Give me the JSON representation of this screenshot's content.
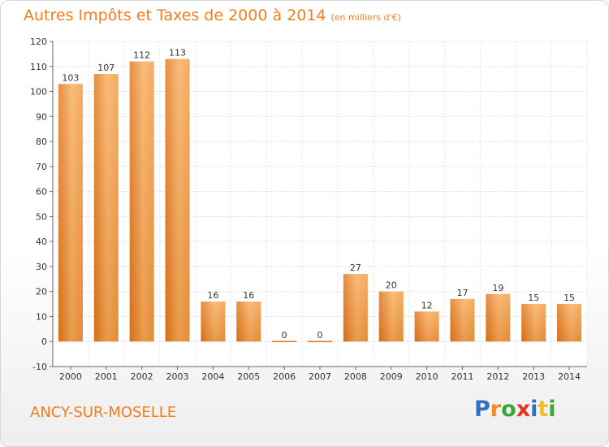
{
  "chart_data": {
    "type": "bar",
    "title": "Autres Impôts et Taxes de 2000 à 2014",
    "subtitle": "(en milliers d'€)",
    "categories": [
      "2000",
      "2001",
      "2002",
      "2003",
      "2004",
      "2005",
      "2006",
      "2007",
      "2008",
      "2009",
      "2010",
      "2011",
      "2012",
      "2013",
      "2014"
    ],
    "values": [
      103,
      107,
      112,
      113,
      16,
      16,
      0,
      0,
      27,
      20,
      12,
      17,
      19,
      15,
      15
    ],
    "data_labels": [
      "103",
      "107",
      "112",
      "113",
      "16",
      "16",
      "0",
      "0",
      "27",
      "20",
      "12",
      "17",
      "19",
      "15",
      "15"
    ],
    "ylim": [
      -10,
      120
    ],
    "yticks": [
      -10,
      0,
      10,
      20,
      30,
      40,
      50,
      60,
      70,
      80,
      90,
      100,
      110,
      120
    ],
    "xlabel": "",
    "ylabel": "",
    "grid": true,
    "bar_color": "#f39a3f",
    "bar_color_light": "#f8ad5e",
    "bar_color_dark": "#e0761c"
  },
  "commune": "ANCY-SUR-MOSELLE",
  "logo": {
    "letters": [
      "P",
      "r",
      "o",
      "x",
      "i",
      "t",
      "i"
    ],
    "colors": [
      "#2f6fc8",
      "#f28b20",
      "#3fa63a",
      "#e8341c",
      "#2f6fc8",
      "#f2c01e",
      "#3fa63a"
    ]
  }
}
